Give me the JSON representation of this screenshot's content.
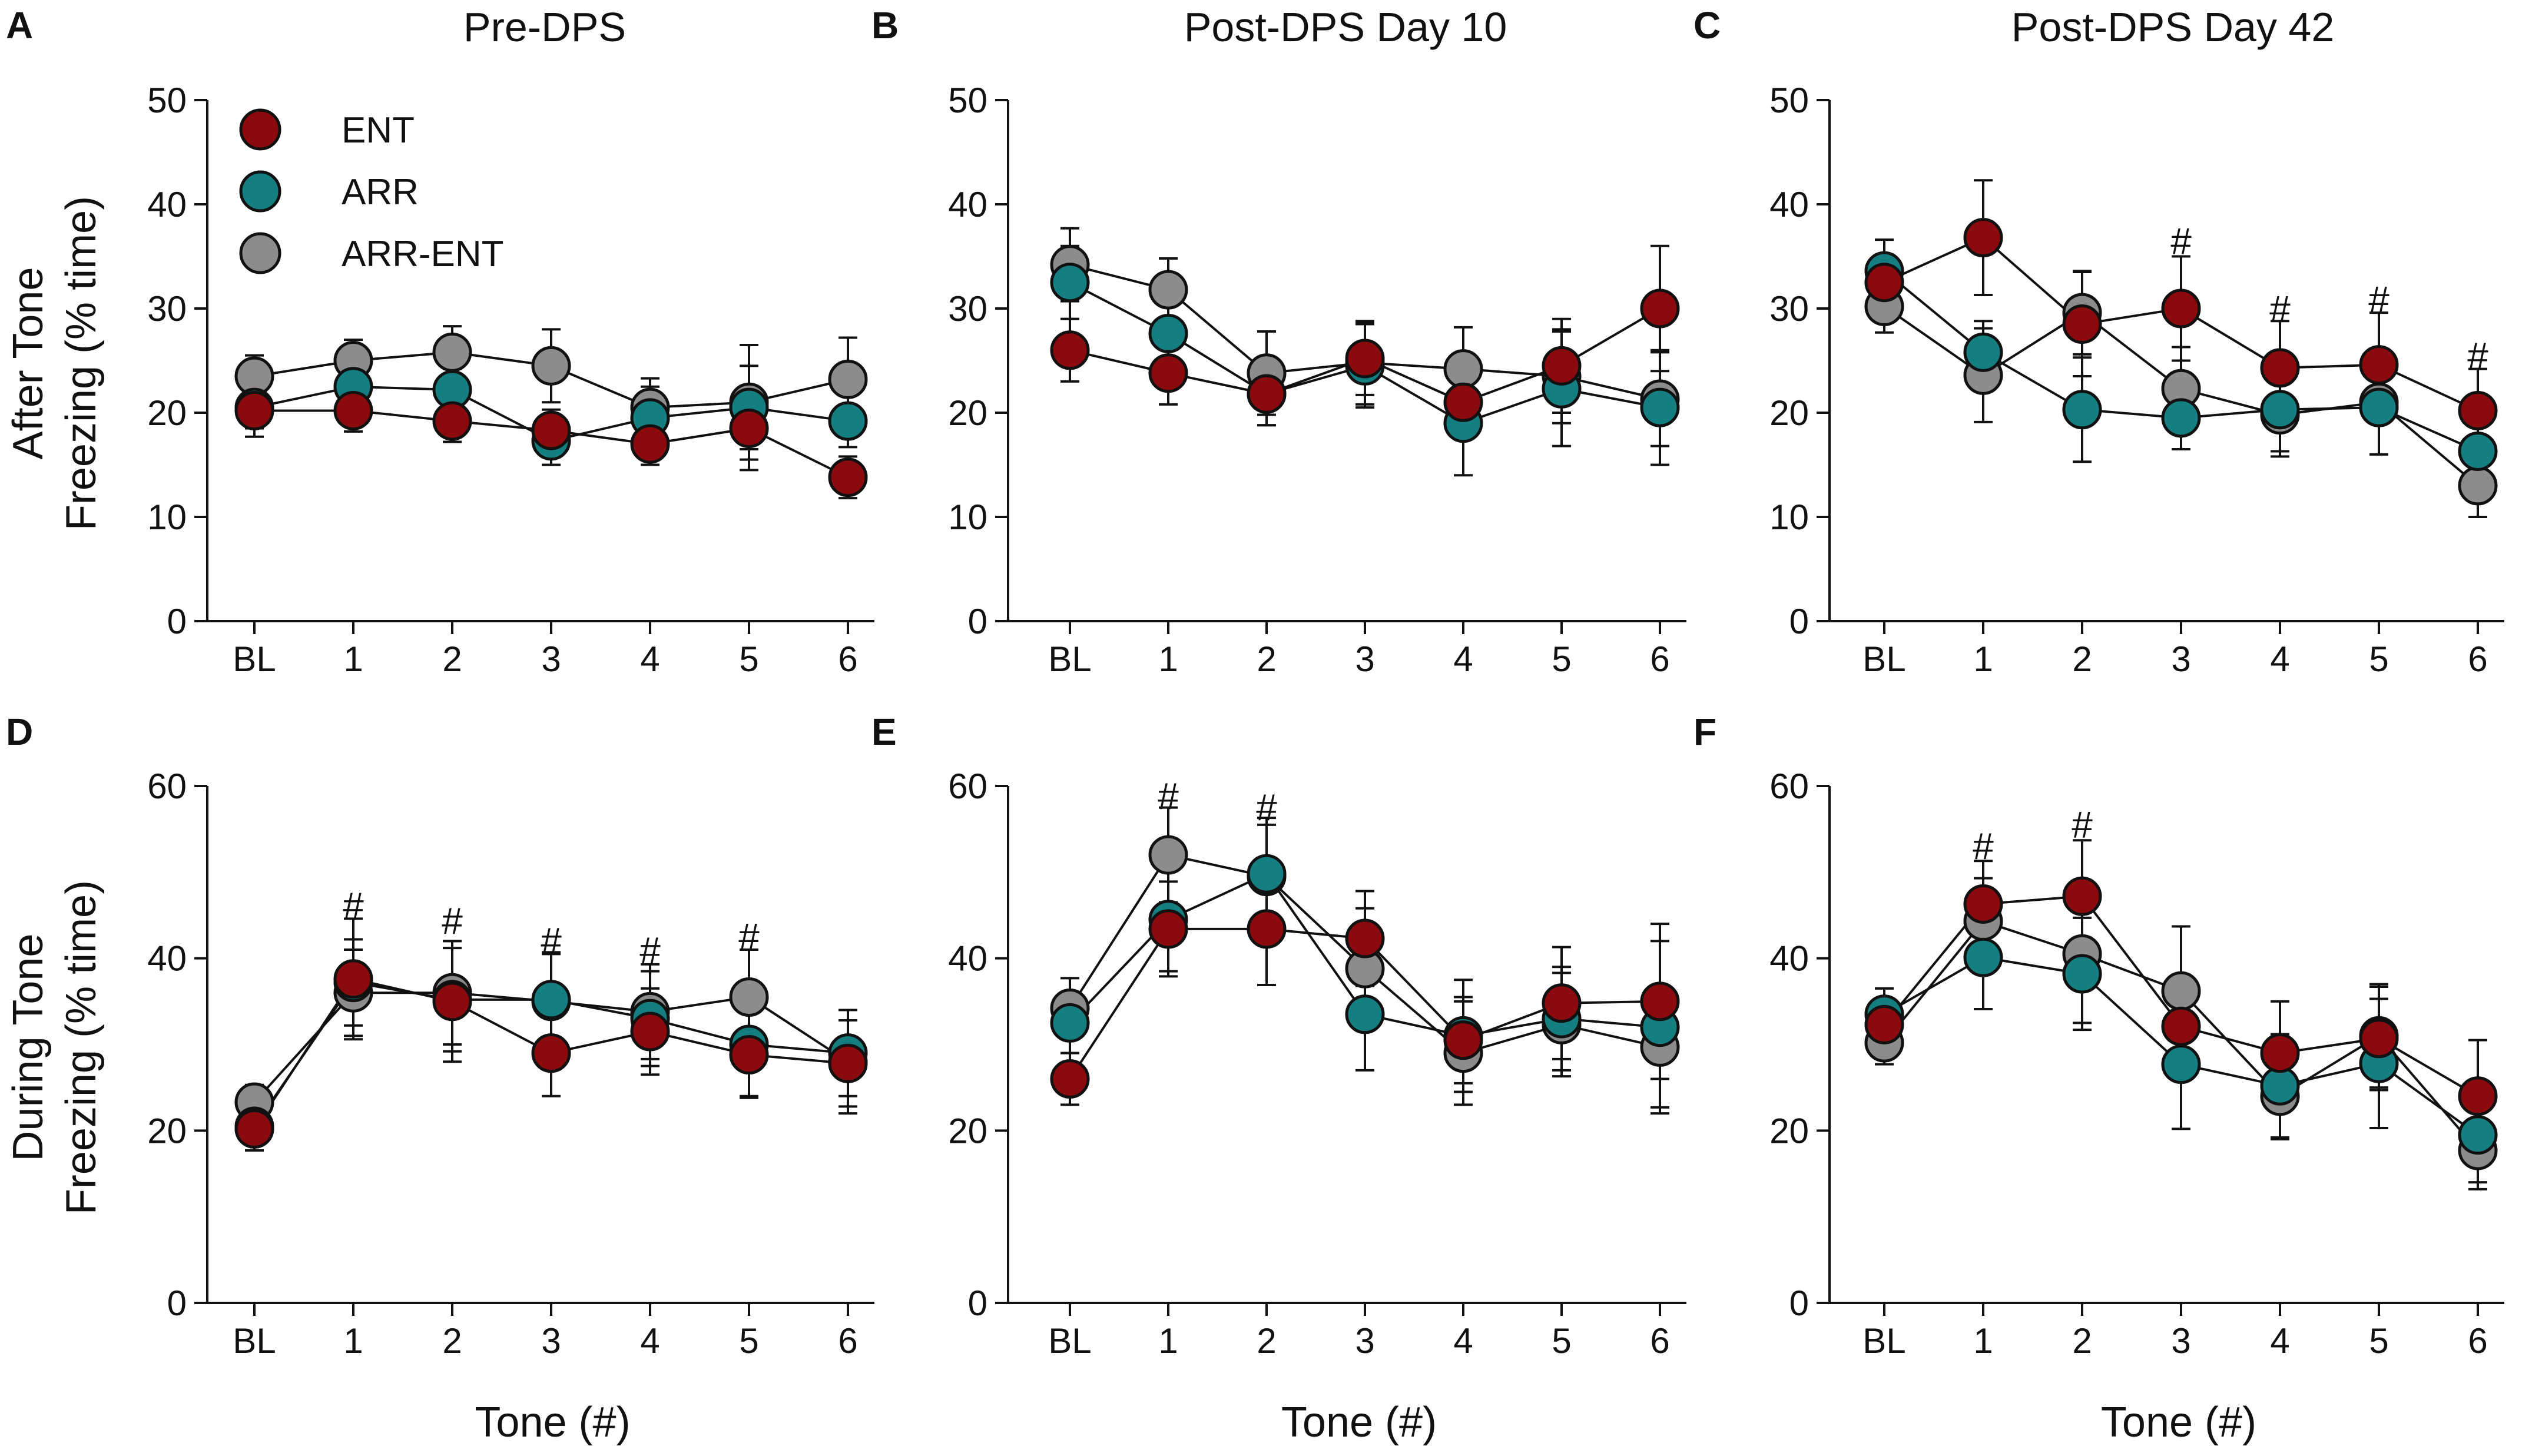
{
  "figure": {
    "x_axis_label": "Tone (#)",
    "row_ylabels": [
      [
        "After Tone",
        "Freezing (% time)"
      ],
      [
        "During Tone",
        "Freezing (% time)"
      ]
    ],
    "legend": [
      {
        "name": "ENT",
        "color": "#8b0a0d"
      },
      {
        "name": "ARR",
        "color": "#157e80"
      },
      {
        "name": "ARR-ENT",
        "color": "#8c8c8c"
      }
    ]
  },
  "chart_data": [
    {
      "type": "line",
      "letter": "A",
      "title": "Pre-DPS",
      "xlabel": "",
      "ylabel": "After Tone Freezing (% time)",
      "categories": [
        "BL",
        "1",
        "2",
        "3",
        "4",
        "5",
        "6"
      ],
      "ylim": [
        0,
        50
      ],
      "yticks": [
        0,
        10,
        20,
        30,
        40,
        50
      ],
      "series": [
        {
          "name": "ARR-ENT",
          "values": [
            23.5,
            25,
            25.8,
            24.5,
            20.5,
            21,
            23.2
          ],
          "errors": [
            2,
            2,
            2.5,
            3.5,
            2.8,
            5.5,
            4
          ]
        },
        {
          "name": "ARR",
          "values": [
            20.5,
            22.5,
            22.2,
            17.3,
            19.5,
            20.5,
            19.2
          ],
          "errors": [
            2,
            3,
            2,
            2.3,
            3,
            4,
            2.5
          ]
        },
        {
          "name": "ENT",
          "values": [
            20.2,
            20.2,
            19.2,
            18.3,
            17,
            18.5,
            13.8
          ],
          "errors": [
            2.5,
            2,
            2,
            2,
            2,
            4,
            2
          ]
        }
      ],
      "markers": []
    },
    {
      "type": "line",
      "letter": "B",
      "title": "Post-DPS Day 10",
      "xlabel": "",
      "ylabel": "After Tone Freezing (% time)",
      "categories": [
        "BL",
        "1",
        "2",
        "3",
        "4",
        "5",
        "6"
      ],
      "ylim": [
        0,
        50
      ],
      "yticks": [
        0,
        10,
        20,
        30,
        40,
        50
      ],
      "series": [
        {
          "name": "ARR-ENT",
          "values": [
            34.2,
            31.8,
            23.8,
            24.8,
            24.2,
            23.5,
            21.3
          ],
          "errors": [
            3.5,
            3,
            4,
            4,
            4,
            4.5,
            4.5
          ]
        },
        {
          "name": "ARR",
          "values": [
            32.5,
            27.6,
            21.8,
            24.5,
            19,
            22.3,
            20.5
          ],
          "errors": [
            3.5,
            3,
            3,
            4,
            5,
            5.5,
            5.5
          ]
        },
        {
          "name": "ENT",
          "values": [
            26,
            23.8,
            21.8,
            25.2,
            21,
            24.5,
            30
          ]
        },
        {
          "name": "_ENT_err",
          "values": [
            3,
            3,
            3,
            3.5,
            2.5,
            4.5,
            6
          ]
        }
      ],
      "markers": []
    },
    {
      "type": "line",
      "letter": "C",
      "title": "Post-DPS Day 42",
      "xlabel": "",
      "ylabel": "After Tone Freezing (% time)",
      "categories": [
        "BL",
        "1",
        "2",
        "3",
        "4",
        "5",
        "6"
      ],
      "ylim": [
        0,
        50
      ],
      "yticks": [
        0,
        10,
        20,
        30,
        40,
        50
      ],
      "series": [
        {
          "name": "ARR-ENT",
          "values": [
            30.2,
            23.6,
            29.6,
            22.3,
            19.8,
            21,
            13
          ],
          "errors": [
            2.5,
            4.5,
            4,
            4,
            4,
            5,
            3
          ]
        },
        {
          "name": "ARR",
          "values": [
            33.6,
            25.8,
            20.3,
            19.5,
            20.3,
            20.5,
            16.3
          ],
          "errors": [
            3,
            3,
            5,
            3,
            4,
            4.5,
            4
          ]
        },
        {
          "name": "ENT",
          "values": [
            32.5,
            36.8,
            28.5,
            30,
            24.3,
            24.6,
            20.2
          ],
          "errors": [
            2.5,
            5.5,
            5,
            5,
            4.5,
            5,
            4
          ]
        }
      ],
      "markers": [
        {
          "index": 3,
          "value": 35.2
        },
        {
          "index": 4,
          "value": 28.7
        },
        {
          "index": 5,
          "value": 29.6
        },
        {
          "index": 6,
          "value": 24.2
        }
      ]
    },
    {
      "type": "line",
      "letter": "D",
      "title": "",
      "xlabel": "Tone (#)",
      "ylabel": "During Tone Freezing (% time)",
      "categories": [
        "BL",
        "1",
        "2",
        "3",
        "4",
        "5",
        "6"
      ],
      "ylim": [
        0,
        60
      ],
      "yticks": [
        0,
        20,
        40,
        60
      ],
      "series": [
        {
          "name": "ARR-ENT",
          "values": [
            23.3,
            36,
            36,
            35,
            33.8,
            35.5,
            28
          ],
          "errors": [
            2,
            5,
            6,
            5.5,
            5.5,
            5.5,
            6
          ]
        },
        {
          "name": "ARR",
          "values": [
            20.5,
            37.2,
            35.2,
            35.2,
            33,
            30,
            29
          ],
          "errors": [
            2,
            5,
            6,
            5.5,
            5.5,
            6,
            5
          ]
        },
        {
          "name": "ENT",
          "values": [
            20.2,
            37.6,
            35,
            29,
            31.5,
            28.8,
            27.8
          ],
          "errors": [
            2.5,
            7,
            7,
            5,
            5,
            5,
            5
          ]
        }
      ],
      "markers": [
        {
          "index": 1,
          "value": 44.6
        },
        {
          "index": 2,
          "value": 42.8
        },
        {
          "index": 3,
          "value": 40.5
        },
        {
          "index": 4,
          "value": 39.4
        },
        {
          "index": 5,
          "value": 41
        }
      ]
    },
    {
      "type": "line",
      "letter": "E",
      "title": "",
      "xlabel": "Tone (#)",
      "ylabel": "During Tone Freezing (% time)",
      "categories": [
        "BL",
        "1",
        "2",
        "3",
        "4",
        "5",
        "6"
      ],
      "ylim": [
        0,
        60
      ],
      "yticks": [
        0,
        20,
        40,
        60
      ],
      "series": [
        {
          "name": "ARR-ENT",
          "values": [
            34.2,
            52,
            49.5,
            38.8,
            29,
            32.3,
            29.7
          ],
          "errors": [
            3.5,
            5.5,
            6,
            7,
            6,
            6,
            7
          ]
        },
        {
          "name": "ARR",
          "values": [
            32.5,
            44.5,
            49.8,
            33.5,
            31,
            33,
            32
          ],
          "errors": [
            3.5,
            6,
            6.5,
            6.5,
            6.5,
            6,
            10
          ]
        },
        {
          "name": "ENT",
          "values": [
            26,
            43.4,
            43.4,
            42.3,
            30.5,
            34.8,
            35
          ],
          "errors": [
            3,
            5.5,
            6.5,
            5.5,
            5,
            6.5,
            9
          ]
        }
      ],
      "markers": [
        {
          "index": 1,
          "value": 57.3
        },
        {
          "index": 2,
          "value": 56
        }
      ]
    },
    {
      "type": "line",
      "letter": "F",
      "title": "",
      "xlabel": "Tone (#)",
      "ylabel": "During Tone Freezing (% time)",
      "categories": [
        "BL",
        "1",
        "2",
        "3",
        "4",
        "5",
        "6"
      ],
      "ylim": [
        0,
        60
      ],
      "yticks": [
        0,
        20,
        40,
        60
      ],
      "series": [
        {
          "name": "ARR-ENT",
          "values": [
            30.2,
            44.3,
            40.5,
            36.2,
            24,
            31,
            17.7
          ],
          "errors": [
            2.5,
            5,
            8,
            7.5,
            5,
            6,
            4.5
          ]
        },
        {
          "name": "ARR",
          "values": [
            33.5,
            40.1,
            38.2,
            27.7,
            25.2,
            27.8,
            19.5
          ],
          "errors": [
            3,
            6,
            6.5,
            7.5,
            6,
            7.5,
            5.5
          ]
        },
        {
          "name": "ENT",
          "values": [
            32.3,
            46.3,
            47.2,
            32.1,
            29,
            30.7,
            24
          ],
          "errors": [
            2.5,
            5,
            6.5,
            5,
            6,
            6,
            6.5
          ]
        }
      ],
      "markers": [
        {
          "index": 1,
          "value": 51.5
        },
        {
          "index": 2,
          "value": 54
        }
      ]
    }
  ]
}
